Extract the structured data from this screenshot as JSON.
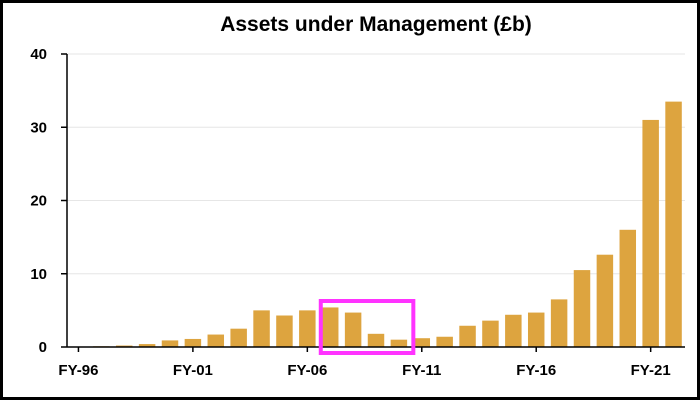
{
  "chart_data": {
    "type": "bar",
    "title": "Assets under Management (£b)",
    "xlabel": "",
    "ylabel": "",
    "categories": [
      "FY-96",
      "FY-97",
      "FY-98",
      "FY-99",
      "FY-00",
      "FY-01",
      "FY-02",
      "FY-03",
      "FY-04",
      "FY-05",
      "FY-06",
      "FY-07",
      "FY-08",
      "FY-09",
      "FY-10",
      "FY-11",
      "FY-12",
      "FY-13",
      "FY-14",
      "FY-15",
      "FY-16",
      "FY-17",
      "FY-18",
      "FY-19",
      "FY-20",
      "FY-21",
      "FY-22"
    ],
    "x_tick_labels": [
      "FY-96",
      "FY-01",
      "FY-06",
      "FY-11",
      "FY-16",
      "FY-21"
    ],
    "values": [
      0,
      0.1,
      0.2,
      0.4,
      0.9,
      1.1,
      1.7,
      2.5,
      5.0,
      4.3,
      5.0,
      5.4,
      4.7,
      1.8,
      1.0,
      1.2,
      1.4,
      2.9,
      3.6,
      4.4,
      4.7,
      6.5,
      10.5,
      12.6,
      16.0,
      31.0,
      33.5
    ],
    "ylim": [
      0,
      40
    ],
    "y_ticks": [
      0,
      10,
      20,
      30,
      40
    ],
    "grid": true,
    "legend": "none",
    "highlight": {
      "from": "FY-07",
      "to": "FY-10"
    },
    "colors": {
      "bar": "#DDA43F",
      "highlight": "#FF33FF",
      "grid": "#E6E6E6",
      "axis": "#000000"
    }
  }
}
